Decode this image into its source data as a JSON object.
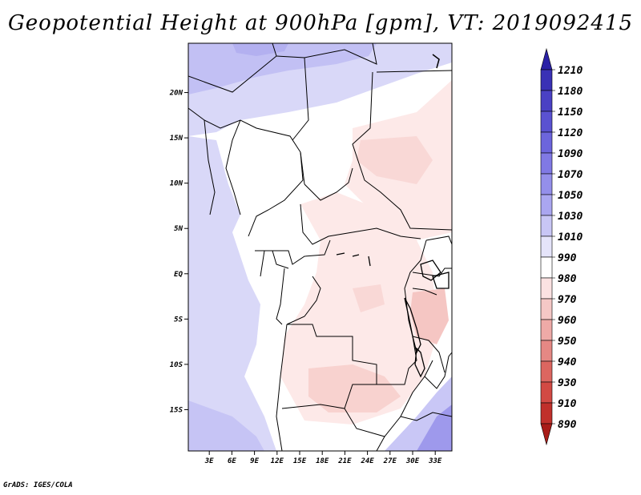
{
  "title": "Geopotential Height at 900hPa [gpm], VT: 2019092415",
  "credit": "GrADS: IGES/COLA",
  "map": {
    "lat_labels": [
      {
        "text": "20N",
        "lat": 20
      },
      {
        "text": "15N",
        "lat": 15
      },
      {
        "text": "10N",
        "lat": 10
      },
      {
        "text": "5N",
        "lat": 5
      },
      {
        "text": "EQ",
        "lat": 0
      },
      {
        "text": "5S",
        "lat": -5
      },
      {
        "text": "10S",
        "lat": -10
      },
      {
        "text": "15S",
        "lat": -15
      }
    ],
    "lon_labels": [
      {
        "text": "3E",
        "lon": 3
      },
      {
        "text": "6E",
        "lon": 6
      },
      {
        "text": "9E",
        "lon": 9
      },
      {
        "text": "12E",
        "lon": 12
      },
      {
        "text": "15E",
        "lon": 15
      },
      {
        "text": "18E",
        "lon": 18
      },
      {
        "text": "21E",
        "lon": 21
      },
      {
        "text": "24E",
        "lon": 24
      },
      {
        "text": "27E",
        "lon": 27
      },
      {
        "text": "30E",
        "lon": 30
      },
      {
        "text": "33E",
        "lon": 33
      }
    ],
    "lon_range": [
      0,
      35
    ],
    "lat_range": [
      -20,
      25
    ]
  },
  "colorbar": {
    "levels": [
      "1210",
      "1180",
      "1150",
      "1120",
      "1090",
      "1070",
      "1050",
      "1030",
      "1010",
      "990",
      "980",
      "970",
      "960",
      "950",
      "940",
      "930",
      "910",
      "890"
    ],
    "colors": [
      "#2a21a6",
      "#3a31b5",
      "#4a41c4",
      "#5a52d1",
      "#6c65dc",
      "#8079e4",
      "#948fea",
      "#aaa6f0",
      "#c8c6f5",
      "#e5e4fa",
      "#ffffff",
      "#fbe2e2",
      "#f5c8c6",
      "#ee aaa7",
      "#e58884",
      "#dc6660",
      "#d24a44",
      "#c0302b",
      "#a81c18"
    ]
  }
}
